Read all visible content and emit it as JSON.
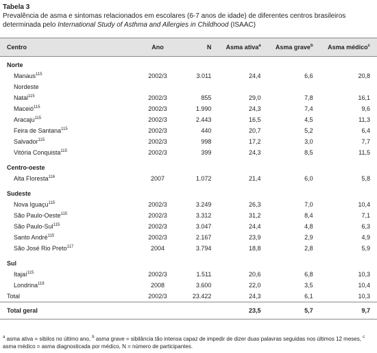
{
  "header": {
    "title": "Tabela 3",
    "caption": [
      "Prevalência de asma e sintomas relacionados em escolares (6-7 anos de idade) de diferentes centros brasileiros determinada pelo ",
      "International Study of Asthma and Allergies in Childhood",
      " (ISAAC)"
    ]
  },
  "table": {
    "columns": [
      {
        "text": "Centro"
      },
      {
        "text": "Ano"
      },
      {
        "text": "N"
      },
      {
        "text": "Asma ativa",
        "sup": "a"
      },
      {
        "text": "Asma grave",
        "sup": "b"
      },
      {
        "text": "Asma médico",
        "sup": "c"
      }
    ],
    "rows": [
      {
        "group": "Norte"
      },
      {
        "cells": [
          "Manaus",
          "2002/3",
          "3.011",
          "24,4",
          "6,6",
          "20,8"
        ],
        "ref": "115"
      },
      {
        "sub": "Nordeste"
      },
      {
        "cells": [
          "Natal",
          "2002/3",
          "855",
          "29,0",
          "7,8",
          "16,1"
        ],
        "ref": "115"
      },
      {
        "cells": [
          "Maceió",
          "2002/3",
          "1.990",
          "24,3",
          "7,4",
          "9,6"
        ],
        "ref": "115"
      },
      {
        "cells": [
          "Aracaju",
          "2002/3",
          "2.443",
          "16,5",
          "4,5",
          "11,3"
        ],
        "ref": "115"
      },
      {
        "cells": [
          "Feira de Santana",
          "2002/3",
          "440",
          "20,7",
          "5,2",
          "6,4"
        ],
        "ref": "115"
      },
      {
        "cells": [
          "Salvador",
          "2002/3",
          "998",
          "17,2",
          "3,0",
          "7,7"
        ],
        "ref": "115"
      },
      {
        "cells": [
          "Vitória Conquista",
          "2002/3",
          "399",
          "24,3",
          "8,5",
          "11,5"
        ],
        "ref": "115"
      },
      {
        "group": "Centro-oeste"
      },
      {
        "cells": [
          "Alta Floresta",
          "2007",
          "1.072",
          "21,4",
          "6,0",
          "5,8"
        ],
        "ref": "116"
      },
      {
        "group": "Sudeste"
      },
      {
        "cells": [
          "Nova Iguaçu",
          "2002/3",
          "3.249",
          "26,3",
          "7,0",
          "10,4"
        ],
        "ref": "115"
      },
      {
        "cells": [
          "São Paulo-Oeste",
          "2002/3",
          "3.312",
          "31,2",
          "8,4",
          "7,1"
        ],
        "ref": "115"
      },
      {
        "cells": [
          "São Paulo-Sul",
          "2002/3",
          "3.047",
          "24,4",
          "4,8",
          "6,3"
        ],
        "ref": "115"
      },
      {
        "cells": [
          "Santo André",
          "2002/3",
          "2.167",
          "23,9",
          "2,9",
          "4,9"
        ],
        "ref": "115"
      },
      {
        "cells": [
          "São José Rio Preto",
          "2004",
          "3.794",
          "18,8",
          "2,8",
          "5,9"
        ],
        "ref": "117"
      },
      {
        "group": "Sul"
      },
      {
        "cells": [
          "Itajaí",
          "2002/3",
          "1.511",
          "20,6",
          "6,8",
          "10,3"
        ],
        "ref": "115"
      },
      {
        "cells": [
          "Londrina",
          "2008",
          "3.600",
          "22,0",
          "3,5",
          "10,4"
        ],
        "ref": "118"
      },
      {
        "total": true,
        "cells": [
          "Total",
          "2002/3",
          "23.422",
          "24,3",
          "6,1",
          "10,3"
        ]
      },
      {
        "grand": true,
        "cells": [
          "Total geral",
          "",
          "",
          "23,5",
          "5,7",
          "9,7"
        ]
      }
    ]
  },
  "footnote": [
    {
      "sup": "a",
      "text": " asma ativa = sibilos no último ano, "
    },
    {
      "sup": "b",
      "text": " asma grave = sibilância tão intensa capaz de impedir de dizer duas palavras seguidas nos últimos 12 meses, "
    },
    {
      "sup": "c",
      "text": " asma médico = asma diagnosticada por médico, N = número de participantes."
    }
  ]
}
